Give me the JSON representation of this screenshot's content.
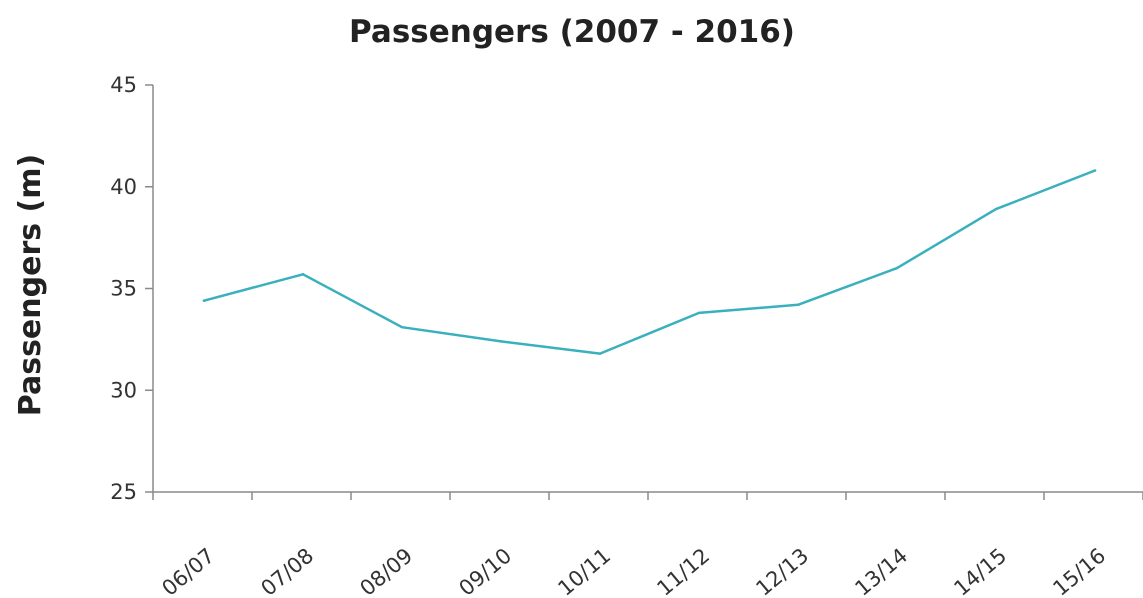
{
  "chart_data": {
    "type": "line",
    "title": "Passengers (2007 - 2016)",
    "xlabel": "",
    "ylabel": "Passengers (m)",
    "categories": [
      "06/07",
      "07/08",
      "08/09",
      "09/10",
      "10/11",
      "11/12",
      "12/13",
      "13/14",
      "14/15",
      "15/16"
    ],
    "series": [
      {
        "values": [
          34.4,
          35.7,
          33.1,
          32.4,
          31.8,
          33.8,
          34.2,
          36.0,
          38.9,
          40.8
        ],
        "color": "#3AB0BE"
      }
    ],
    "ylim": [
      25,
      45
    ],
    "yticks": [
      25,
      30,
      35,
      40,
      45
    ],
    "grid": false,
    "legend": "none"
  }
}
